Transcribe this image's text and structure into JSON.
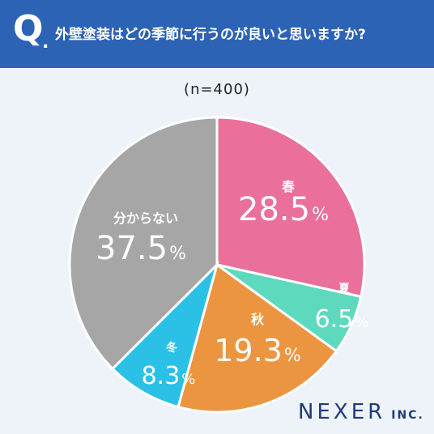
{
  "header": {
    "q_mark": "Q",
    "question": "外壁塗装はどの季節に行うのが良いと思いますか?"
  },
  "sample_note": "(n=400)",
  "logo": {
    "name": "NEXER",
    "suffix": "INC."
  },
  "chart_data": {
    "type": "pie",
    "title": "外壁塗装はどの季節に行うのが良いと思いますか?",
    "note": "(n=400)",
    "slices": [
      {
        "label": "春",
        "value": 28.5,
        "display": "28.5",
        "color": "#ea6f9b"
      },
      {
        "label": "夏",
        "value": 6.5,
        "display": "6.5",
        "color": "#5dd9be"
      },
      {
        "label": "秋",
        "value": 19.3,
        "display": "19.3",
        "color": "#ec9540"
      },
      {
        "label": "冬",
        "value": 8.3,
        "display": "8.3",
        "color": "#2bc1e6"
      },
      {
        "label": "分からない",
        "value": 37.5,
        "display": "37.5",
        "color": "#a6a6a6"
      }
    ],
    "unit": "%",
    "start": "12 o'clock",
    "direction": "clockwise"
  }
}
